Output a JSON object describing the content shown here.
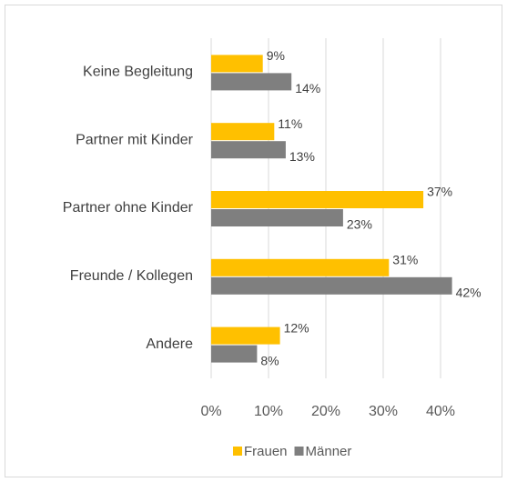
{
  "chart_data": {
    "type": "hbar",
    "categories": [
      "Keine Begleitung",
      "Partner mit Kinder",
      "Partner ohne Kinder",
      "Freunde / Kollegen",
      "Andere"
    ],
    "series": [
      {
        "name": "Frauen",
        "color": "#ffc000",
        "values": [
          9,
          11,
          37,
          31,
          12
        ],
        "value_labels": [
          "9%",
          "11%",
          "37%",
          "31%",
          "12%"
        ]
      },
      {
        "name": "Männer",
        "color": "#7f7f7f",
        "values": [
          14,
          13,
          23,
          42,
          8
        ],
        "value_labels": [
          "14%",
          "13%",
          "23%",
          "42%",
          "8%"
        ]
      }
    ],
    "xlim": [
      0,
      45
    ],
    "xticks": [
      {
        "value": 0,
        "label": "0%"
      },
      {
        "value": 10,
        "label": "10%"
      },
      {
        "value": 20,
        "label": "20%"
      },
      {
        "value": 30,
        "label": "30%"
      },
      {
        "value": 40,
        "label": "40%"
      }
    ],
    "grid": true,
    "legend": "bottom"
  }
}
